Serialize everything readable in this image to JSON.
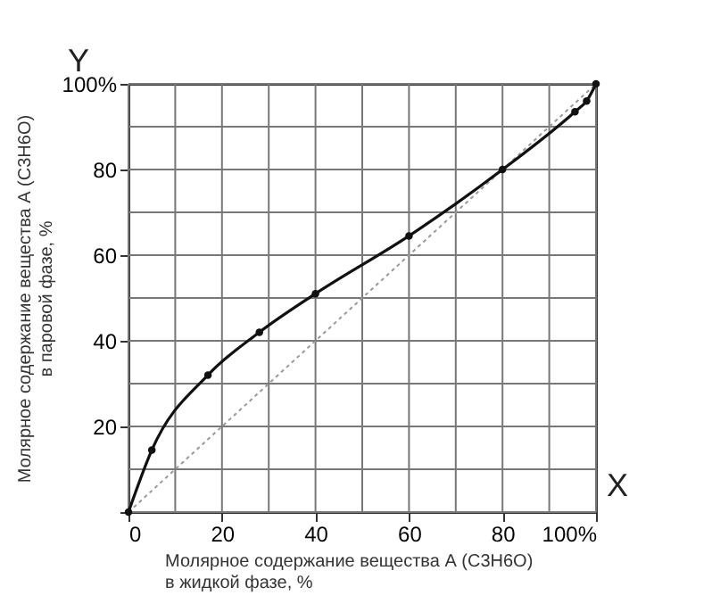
{
  "chart_data": {
    "type": "line",
    "xlabel": "Молярное содержание вещества А (C3H6O)\nв жидкой фазе, %",
    "ylabel": "Молярное содержание вещества А (C3H6O)\nв паровой фазе, %",
    "annotations": [
      "X",
      "Y"
    ],
    "xlim": [
      0,
      100
    ],
    "ylim": [
      0,
      100
    ],
    "xticks": [
      0,
      {
        "value": 10,
        "label": null
      },
      20,
      {
        "value": 30,
        "label": null
      },
      40,
      {
        "value": 50,
        "label": null
      },
      60,
      {
        "value": 70,
        "label": null
      },
      80,
      {
        "value": 90,
        "label": null
      },
      {
        "value": 100,
        "label": "100%"
      }
    ],
    "yticks": [
      {
        "value": 0,
        "label": null
      },
      {
        "value": 10,
        "label": null
      },
      20,
      {
        "value": 30,
        "label": null
      },
      40,
      {
        "value": 50,
        "label": null
      },
      60,
      {
        "value": 70,
        "label": null
      },
      80,
      {
        "value": 90,
        "label": null
      },
      {
        "value": 100,
        "label": "100%"
      }
    ],
    "grid": true,
    "series": [
      {
        "color": "#999999",
        "line_style": "dotted",
        "marker": "none",
        "x": [
          0,
          100
        ],
        "values": [
          0,
          100
        ]
      },
      {
        "color": "#111111",
        "line_style": "solid",
        "marker": "circle",
        "x": [
          0,
          5,
          17,
          28,
          40,
          60,
          80,
          95.5,
          98,
          100
        ],
        "values": [
          0,
          14.5,
          32,
          42,
          51,
          64.5,
          80,
          93.5,
          96,
          100
        ]
      }
    ]
  }
}
